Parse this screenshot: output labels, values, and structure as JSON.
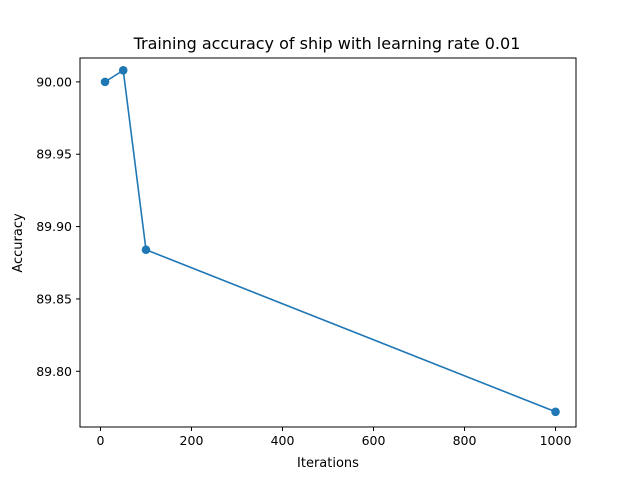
{
  "chart_data": {
    "type": "line",
    "title": "Training accuracy of ship with learning rate 0.01",
    "xlabel": "Iterations",
    "ylabel": "Accuracy",
    "xlim": [
      -45,
      1045
    ],
    "ylim": [
      89.7615,
      90.0165
    ],
    "xticks": [
      0,
      200,
      400,
      600,
      800,
      1000
    ],
    "xtick_labels": [
      "0",
      "200",
      "400",
      "600",
      "800",
      "1000"
    ],
    "yticks": [
      89.8,
      89.85,
      89.9,
      89.95,
      90.0
    ],
    "ytick_labels": [
      "89.80",
      "89.85",
      "89.90",
      "89.95",
      "90.00"
    ],
    "grid": false,
    "series": [
      {
        "color": "#1f77b4",
        "marker": "circle",
        "x": [
          10,
          50,
          100,
          1000
        ],
        "y": [
          90.0,
          90.008,
          89.884,
          89.772
        ]
      }
    ]
  }
}
